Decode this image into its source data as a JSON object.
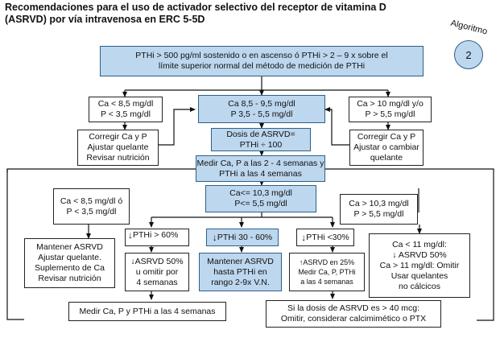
{
  "title": {
    "line1": "Recomendaciones para el uso de activador selectivo del receptor de vitamina D",
    "line2": "(ASRVD) por vía intravenosa en ERC 5-5D"
  },
  "badge": {
    "label": "Algoritmo",
    "number": "2"
  },
  "top_box": {
    "line1": "PTHi > 500 pg/ml sostenido o en ascenso ó PTHi > 2 – 9 x sobre el",
    "line2": "límite superior normal del método de medición de PTHi"
  },
  "row1": {
    "left_cond": {
      "line1": "Ca < 8,5 mg/dl",
      "line2": "P < 3,5 mg/dl"
    },
    "center_cond": {
      "line1": "Ca 8,5 - 9,5 mg/dl",
      "line2": "P 3,5 - 5,5 mg/dl"
    },
    "right_cond": {
      "line1": "Ca > 10 mg/dl y/o",
      "line2": "P > 5,5 mg/dl"
    }
  },
  "row2": {
    "left_action": {
      "line1": "Corregir Ca y P",
      "line2": "Ajustar quelante",
      "line3": "Revisar nutrición"
    },
    "dose": {
      "line1": "Dosis de ASRVD=",
      "line2": "PTHi ÷ 100"
    },
    "right_action": {
      "line1": "Corregir Ca y P",
      "line2": "Ajustar o cambiar",
      "line3": "quelante"
    }
  },
  "measure_box": {
    "line1": "Medir Ca, P a las 2 - 4 semanas y",
    "line2": "PTHi a las 4 semanas"
  },
  "row3": {
    "left_cond": {
      "line1": "Ca < 8,5 mg/dl ó",
      "line2": "P < 3,5 mg/dl"
    },
    "center_cond": {
      "line1": "Ca<= 10,3 mg/dl",
      "line2": "P<=  5,5 mg/dl"
    },
    "right_cond": {
      "line1": "Ca > 10,3 mg/dl",
      "line2": "P > 5,5 mg/dl"
    }
  },
  "row4": {
    "pth_high": "PTHi > 60%",
    "pth_mid": "PTHi 30 - 60%",
    "pth_low": "PTHi <30%"
  },
  "left_keep": {
    "line1": "Mantener ASRVD",
    "line2": "Ajustar quelante.",
    "line3": "Suplemento de Ca",
    "line4": "Revisar nutrición"
  },
  "reduce_box": {
    "line1": "ASRVD 50%",
    "line2": "u omitir por",
    "line3": "4 semanas"
  },
  "keep_mid": {
    "line1": "Mantener ASRVD",
    "line2": "hasta PTHi en",
    "line3": "rango 2-9x V.N."
  },
  "increase_box": {
    "line1": "ASRVD en 25%",
    "line2": "Medir Ca, P, PTHi",
    "line3": "a las 4 semanas"
  },
  "right_ca": {
    "line1": "Ca < 11 mg/dl:",
    "line2": "ASRVD 50%",
    "line3": "Ca > 11 mg/dl: Omitir",
    "line4": "Usar quelantes",
    "line5": "no cálcicos"
  },
  "bottom_left": "Medir Ca, P y PTHi a las 4 semanas",
  "bottom_right": {
    "line1": "Si la dosis de ASRVD es > 40 mcg:",
    "line2": "Omitir, considerar calcimimético o PTX"
  },
  "colors": {
    "box_fill": "#bdd7ee",
    "box_border": "#2e5f8a",
    "line": "#111111"
  }
}
